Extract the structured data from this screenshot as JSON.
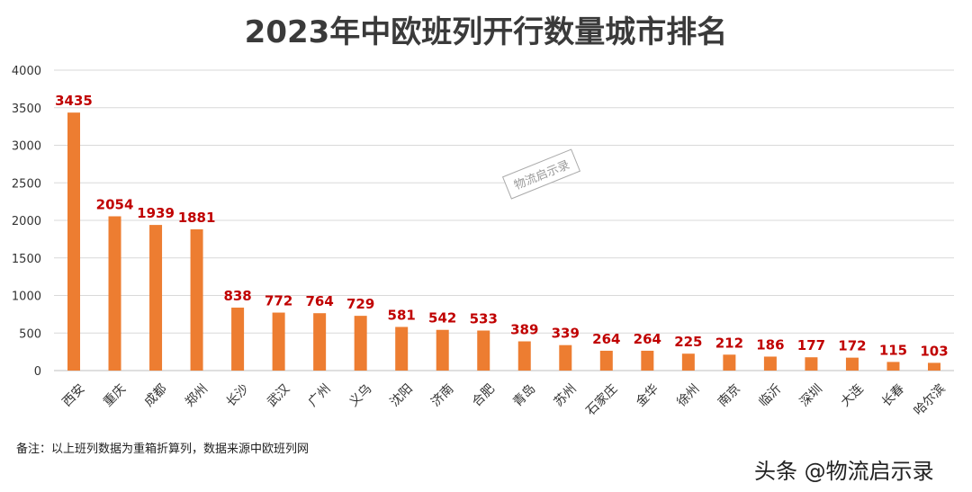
{
  "chart_data": {
    "type": "bar",
    "title": "2023年中欧班列开行数量城市排名",
    "categories": [
      "西安",
      "重庆",
      "成都",
      "郑州",
      "长沙",
      "武汉",
      "广州",
      "义乌",
      "沈阳",
      "济南",
      "合肥",
      "青岛",
      "苏州",
      "石家庄",
      "金华",
      "徐州",
      "南京",
      "临沂",
      "深圳",
      "大连",
      "长春",
      "哈尔滨"
    ],
    "values": [
      3435,
      2054,
      1939,
      1881,
      838,
      772,
      764,
      729,
      581,
      542,
      533,
      389,
      339,
      264,
      264,
      225,
      212,
      186,
      177,
      172,
      115,
      103
    ],
    "ylim": [
      0,
      4000
    ],
    "yticks": [
      0,
      500,
      1000,
      1500,
      2000,
      2500,
      3000,
      3500,
      4000
    ],
    "grid": true,
    "bar_color": "#ed7d31",
    "label_color": "#c00000"
  },
  "footnote": "备注：以上班列数据为重箱折算列，数据来源中欧班列网",
  "credit": "头条 @物流启示录",
  "watermark": "物流启示录"
}
